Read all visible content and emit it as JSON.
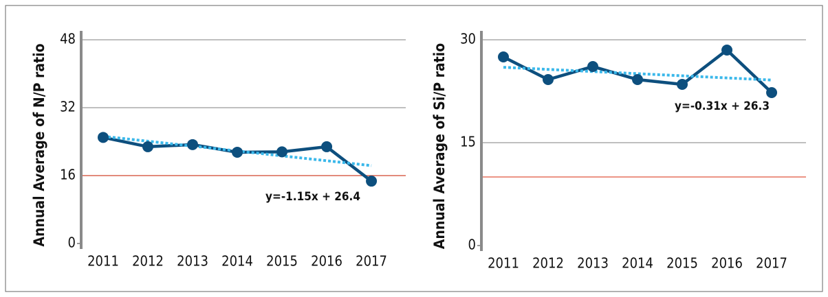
{
  "chart_data": [
    {
      "type": "line",
      "y_label": "Annual Average of N/P ratio",
      "categories": [
        "2011",
        "2012",
        "2013",
        "2014",
        "2015",
        "2016",
        "2017"
      ],
      "series": [
        {
          "color": "#0d4f7e",
          "values": [
            25.0,
            22.8,
            23.3,
            21.5,
            21.6,
            22.8,
            14.7
          ]
        }
      ],
      "trendline": {
        "color": "#3bb8ea",
        "values": [
          25.25,
          24.1,
          22.95,
          21.8,
          20.65,
          19.5,
          18.35
        ]
      },
      "annotation": "y=-1.15x + 26.4",
      "reference_line": {
        "value": 16,
        "color": "#e0533c"
      },
      "ylim": [
        0,
        48
      ],
      "yticks": [
        0,
        16,
        32,
        48
      ],
      "grid": true
    },
    {
      "type": "line",
      "y_label": "Annual Average of Si/P ratio",
      "categories": [
        "2011",
        "2012",
        "2013",
        "2014",
        "2015",
        "2016",
        "2017"
      ],
      "series": [
        {
          "color": "#0d4f7e",
          "values": [
            27.5,
            24.2,
            26.1,
            24.2,
            23.5,
            28.5,
            22.3
          ]
        }
      ],
      "trendline": {
        "color": "#3bb8ea",
        "values": [
          25.99,
          25.68,
          25.37,
          25.06,
          24.75,
          24.44,
          24.13
        ]
      },
      "annotation": "y=-0.31x + 26.3",
      "reference_line": {
        "value": 10,
        "color": "#e0533c"
      },
      "ylim": [
        0,
        30
      ],
      "yticks": [
        0,
        15,
        30
      ],
      "grid": true
    }
  ]
}
